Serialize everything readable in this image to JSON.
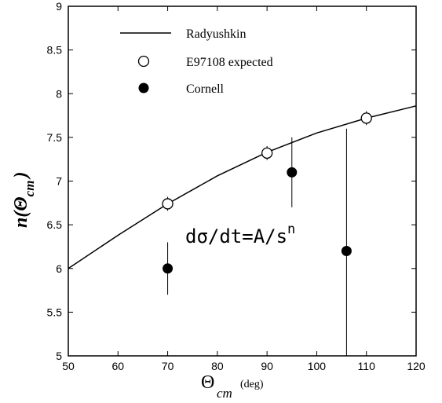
{
  "chart_data": {
    "type": "scatter",
    "xlim": [
      50,
      120
    ],
    "ylim": [
      5,
      9
    ],
    "x_ticks": [
      50,
      60,
      70,
      80,
      90,
      100,
      110,
      120
    ],
    "y_ticks": [
      5,
      5.5,
      6,
      6.5,
      7,
      7.5,
      8,
      8.5,
      9
    ],
    "x_tick_labels": [
      "50",
      "60",
      "70",
      "80",
      "90",
      "100",
      "110",
      "120"
    ],
    "y_tick_labels": [
      "5",
      "5.5",
      "6",
      "6.5",
      "7",
      "7.5",
      "8",
      "8.5",
      "9"
    ],
    "xlabel": {
      "main": "Θ",
      "sub": "cm",
      "unit": "(deg)"
    },
    "ylabel": {
      "main": "n(Θ",
      "sub": "cm",
      "close": ")"
    },
    "annotation": "dσ/dt=A/s",
    "annotation_sup": "n",
    "legend_position": "top-left",
    "grid": false,
    "series": [
      {
        "name": "Radyushkin",
        "kind": "line",
        "x": [
          50,
          60,
          70,
          80,
          90,
          100,
          110,
          120
        ],
        "y": [
          6.0,
          6.38,
          6.74,
          7.06,
          7.33,
          7.55,
          7.72,
          7.86
        ]
      },
      {
        "name": "E97108 expected",
        "kind": "open-circle",
        "x": [
          70,
          90,
          110
        ],
        "y": [
          6.74,
          7.32,
          7.72
        ],
        "err": [
          0.08,
          0.08,
          0.08
        ]
      },
      {
        "name": "Cornell",
        "kind": "filled-circle",
        "x": [
          70,
          95,
          106
        ],
        "y": [
          6.0,
          7.1,
          6.2
        ],
        "err_low": [
          0.3,
          0.4,
          1.2
        ],
        "err_high": [
          0.3,
          0.4,
          1.4
        ]
      }
    ]
  },
  "colors": {
    "ink": "#000000",
    "background": "#ffffff"
  }
}
